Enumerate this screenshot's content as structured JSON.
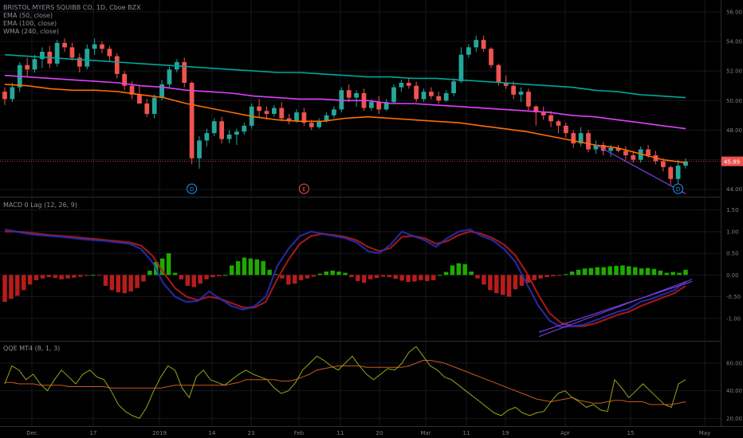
{
  "legend": {
    "symbol": "BRISTOL MYERS SQUIBB CO, 1D, Cboe BZX",
    "ema50": "EMA (50, close)",
    "ema100": "EMA (100, close)",
    "wma240": "WMA (240, close)",
    "macd": "MACD 0 Lag (12, 26, 9)",
    "qqe": "QQE MT4 (8, 1, 3)"
  },
  "colors": {
    "up": "#26a69a",
    "down": "#ef5350",
    "ema50": "#ff6d00",
    "ema100": "#e040fb",
    "wma240": "#00a69c",
    "macd_pos": "#1faa00",
    "macd_neg": "#b71c1c",
    "price_tag": "#ef5350",
    "trend": "#7b3fe4"
  },
  "chart_data": [
    {
      "type": "candlestick",
      "pane": "price",
      "title": "BRISTOL MYERS SQUIBB CO, 1D, Cboe BZX",
      "y_ticks": [
        "56.00",
        "54.00",
        "52.00",
        "50.00",
        "48.00",
        "46.00",
        "44.00"
      ],
      "ylim": [
        43.5,
        56.8
      ],
      "x_ticks": [
        "Dec",
        "17",
        "2019",
        "14",
        "23",
        "Feb",
        "11",
        "20",
        "Mar",
        "11",
        "19",
        "Apr",
        "15",
        "May"
      ],
      "last_price": "45.89",
      "ohlc": [
        [
          50.6,
          50.9,
          49.7,
          50.1
        ],
        [
          50.1,
          51.2,
          49.9,
          50.9
        ],
        [
          50.9,
          52.6,
          50.6,
          52.4
        ],
        [
          52.4,
          52.9,
          51.6,
          52.1
        ],
        [
          52.1,
          53.1,
          51.9,
          52.8
        ],
        [
          52.8,
          53.6,
          52.2,
          53.3
        ],
        [
          53.3,
          53.7,
          52.2,
          52.5
        ],
        [
          52.5,
          54.1,
          52.3,
          53.9
        ],
        [
          53.9,
          54.2,
          53.3,
          53.6
        ],
        [
          53.6,
          53.9,
          52.7,
          52.9
        ],
        [
          52.9,
          53.2,
          51.9,
          52.3
        ],
        [
          52.3,
          53.8,
          52.1,
          53.5
        ],
        [
          53.5,
          54.2,
          53.1,
          53.8
        ],
        [
          53.8,
          54.0,
          53.2,
          53.5
        ],
        [
          53.5,
          53.7,
          52.6,
          53.0
        ],
        [
          53.0,
          53.2,
          51.5,
          51.8
        ],
        [
          51.8,
          52.0,
          50.7,
          51.0
        ],
        [
          51.0,
          51.3,
          50.1,
          50.4
        ],
        [
          50.4,
          51.0,
          49.8,
          49.8
        ],
        [
          49.8,
          50.1,
          48.9,
          49.1
        ],
        [
          49.1,
          50.4,
          48.8,
          50.2
        ],
        [
          50.2,
          51.4,
          50.0,
          51.1
        ],
        [
          51.1,
          52.3,
          50.9,
          52.1
        ],
        [
          52.1,
          52.8,
          51.9,
          52.6
        ],
        [
          52.6,
          52.9,
          50.9,
          51.2
        ],
        [
          51.2,
          51.3,
          45.7,
          46.1
        ],
        [
          46.1,
          47.6,
          45.4,
          47.3
        ],
        [
          47.3,
          48.1,
          46.9,
          47.8
        ],
        [
          47.8,
          48.8,
          47.6,
          48.6
        ],
        [
          48.6,
          48.9,
          47.1,
          47.4
        ],
        [
          47.4,
          48.0,
          47.1,
          47.7
        ],
        [
          47.7,
          48.1,
          47.0,
          47.9
        ],
        [
          47.9,
          48.5,
          47.7,
          48.3
        ],
        [
          48.3,
          49.8,
          48.1,
          49.6
        ],
        [
          49.6,
          50.1,
          48.9,
          49.3
        ],
        [
          49.3,
          49.6,
          48.7,
          49.1
        ],
        [
          49.1,
          49.7,
          48.9,
          49.5
        ],
        [
          49.5,
          49.9,
          48.6,
          48.8
        ],
        [
          48.8,
          49.1,
          48.4,
          48.6
        ],
        [
          48.6,
          49.4,
          48.5,
          49.2
        ],
        [
          49.2,
          49.5,
          48.3,
          48.5
        ],
        [
          48.5,
          48.7,
          48.0,
          48.2
        ],
        [
          48.2,
          48.8,
          48.1,
          48.6
        ],
        [
          48.6,
          49.2,
          48.5,
          49.0
        ],
        [
          49.0,
          49.6,
          48.8,
          49.4
        ],
        [
          49.4,
          50.9,
          49.2,
          50.7
        ],
        [
          50.7,
          51.1,
          49.9,
          50.2
        ],
        [
          50.2,
          50.7,
          49.6,
          50.5
        ],
        [
          50.5,
          50.8,
          49.3,
          49.5
        ],
        [
          49.5,
          50.1,
          49.3,
          49.9
        ],
        [
          49.9,
          50.3,
          49.1,
          49.4
        ],
        [
          49.4,
          50.1,
          49.3,
          49.9
        ],
        [
          49.9,
          51.1,
          49.8,
          50.9
        ],
        [
          50.9,
          51.4,
          50.6,
          51.2
        ],
        [
          51.2,
          51.5,
          50.8,
          51.0
        ],
        [
          51.0,
          51.3,
          49.9,
          50.1
        ],
        [
          50.1,
          50.8,
          49.9,
          50.6
        ],
        [
          50.6,
          50.9,
          50.1,
          50.3
        ],
        [
          50.3,
          50.6,
          49.8,
          50.0
        ],
        [
          50.0,
          50.7,
          49.9,
          50.5
        ],
        [
          50.5,
          51.5,
          50.3,
          51.3
        ],
        [
          51.3,
          53.6,
          51.2,
          53.1
        ],
        [
          53.1,
          53.8,
          52.9,
          53.6
        ],
        [
          53.6,
          54.4,
          53.3,
          54.1
        ],
        [
          54.1,
          54.4,
          53.3,
          53.5
        ],
        [
          53.5,
          53.6,
          52.2,
          52.4
        ],
        [
          52.4,
          52.5,
          51.0,
          51.2
        ],
        [
          51.2,
          51.7,
          50.8,
          51.0
        ],
        [
          51.0,
          51.3,
          50.1,
          50.4
        ],
        [
          50.4,
          50.9,
          49.9,
          50.6
        ],
        [
          50.6,
          50.8,
          49.3,
          49.6
        ],
        [
          49.6,
          49.7,
          48.3,
          49.2
        ],
        [
          49.2,
          49.6,
          48.7,
          49.0
        ],
        [
          49.0,
          49.3,
          48.2,
          48.6
        ],
        [
          48.6,
          48.7,
          47.8,
          48.3
        ],
        [
          48.3,
          48.5,
          47.5,
          47.8
        ],
        [
          47.8,
          48.0,
          46.8,
          47.1
        ],
        [
          47.1,
          48.2,
          46.9,
          47.8
        ],
        [
          47.8,
          48.0,
          46.5,
          46.7
        ],
        [
          46.7,
          47.3,
          46.4,
          47.0
        ],
        [
          47.0,
          47.2,
          46.3,
          46.6
        ],
        [
          46.6,
          47.0,
          46.2,
          46.8
        ],
        [
          46.8,
          47.0,
          46.5,
          46.6
        ],
        [
          46.6,
          46.9,
          46.0,
          46.3
        ],
        [
          46.3,
          46.6,
          45.8,
          46.0
        ],
        [
          46.0,
          46.9,
          45.8,
          46.7
        ],
        [
          46.7,
          47.0,
          46.1,
          46.3
        ],
        [
          46.3,
          46.6,
          45.7,
          45.9
        ],
        [
          45.9,
          46.1,
          45.2,
          45.5
        ],
        [
          45.5,
          45.6,
          44.3,
          44.7
        ],
        [
          44.7,
          46.0,
          44.4,
          45.6
        ],
        [
          45.6,
          46.1,
          45.4,
          45.89
        ]
      ],
      "ema50": [
        51.1,
        51.0,
        50.8,
        50.7,
        50.7,
        50.6,
        50.4,
        50.2,
        49.8,
        49.5,
        49.2,
        48.9,
        48.7,
        48.6,
        48.6,
        48.8,
        48.9,
        48.8,
        48.7,
        48.6,
        48.5,
        48.3,
        48.1,
        47.9,
        47.6,
        47.3,
        47.0,
        46.8,
        46.4,
        46.0,
        45.8
      ],
      "ema100": [
        51.7,
        51.6,
        51.5,
        51.4,
        51.3,
        51.2,
        51.0,
        50.9,
        50.7,
        50.6,
        50.5,
        50.3,
        50.2,
        50.1,
        50.1,
        50.0,
        50.0,
        49.8,
        49.8,
        49.7,
        49.6,
        49.5,
        49.4,
        49.3,
        49.2,
        49.0,
        48.9,
        48.7,
        48.5,
        48.3,
        48.1
      ],
      "wma240": [
        53.1,
        53.0,
        52.9,
        52.8,
        52.7,
        52.6,
        52.5,
        52.4,
        52.3,
        52.2,
        52.1,
        52.0,
        51.9,
        51.9,
        51.8,
        51.7,
        51.6,
        51.6,
        51.5,
        51.5,
        51.4,
        51.3,
        51.2,
        51.1,
        51.0,
        50.9,
        50.7,
        50.6,
        50.4,
        50.3,
        50.2
      ],
      "markers": [
        {
          "label": "D",
          "index": 25,
          "kind": "dividend"
        },
        {
          "label": "E",
          "index": 40,
          "kind": "earnings"
        },
        {
          "label": "D",
          "index": 90,
          "kind": "dividend"
        },
        {
          "label": "E",
          "index": 105,
          "kind": "earnings"
        }
      ]
    },
    {
      "type": "bar",
      "pane": "macd",
      "title": "MACD 0 Lag (12, 26, 9)",
      "y_ticks": [
        "1.50",
        "1.00",
        "0.50",
        "0.00",
        "-0.50",
        "-1.00"
      ],
      "ylim": [
        -1.5,
        1.75
      ],
      "histogram": [
        -0.62,
        -0.55,
        -0.48,
        -0.35,
        -0.22,
        -0.12,
        -0.08,
        -0.05,
        -0.07,
        -0.1,
        -0.08,
        -0.06,
        -0.04,
        -0.02,
        0.0,
        -0.01,
        -0.25,
        -0.35,
        -0.4,
        -0.42,
        -0.38,
        -0.3,
        -0.15,
        0.1,
        0.3,
        0.38,
        0.5,
        0.05,
        -0.1,
        -0.25,
        -0.28,
        -0.2,
        -0.1,
        -0.05,
        -0.03,
        0.0,
        0.22,
        0.32,
        0.4,
        0.38,
        0.36,
        0.32,
        0.12,
        0.02,
        -0.08,
        -0.22,
        -0.2,
        -0.12,
        -0.08,
        -0.04,
        0.03,
        0.08,
        0.1,
        0.08,
        0.05,
        -0.05,
        -0.14,
        -0.18,
        -0.1,
        -0.07,
        -0.04,
        -0.05,
        -0.09,
        -0.13,
        -0.16,
        -0.15,
        -0.12,
        -0.14,
        -0.12,
        0.0,
        0.07,
        0.22,
        0.27,
        0.25,
        0.08,
        -0.08,
        -0.22,
        -0.35,
        -0.42,
        -0.46,
        -0.5,
        -0.33,
        -0.25,
        -0.18,
        -0.12,
        -0.08,
        -0.05,
        -0.03,
        -0.01,
        0.02,
        0.08,
        0.12,
        0.15,
        0.16,
        0.18,
        0.18,
        0.2,
        0.21,
        0.22,
        0.2,
        0.18,
        0.15,
        0.16,
        0.14,
        0.1,
        0.05,
        0.07,
        0.05,
        0.12
      ],
      "macd_line": [
        1.05,
        1.0,
        0.95,
        0.92,
        0.9,
        0.88,
        0.85,
        0.82,
        0.8,
        0.78,
        0.75,
        0.72,
        0.6,
        0.3,
        -0.2,
        -0.5,
        -0.62,
        -0.6,
        -0.38,
        -0.55,
        -0.72,
        -0.8,
        -0.72,
        -0.5,
        0.2,
        0.6,
        0.9,
        1.0,
        0.95,
        0.9,
        0.85,
        0.75,
        0.55,
        0.5,
        0.7,
        1.0,
        0.9,
        0.8,
        0.65,
        0.85,
        1.0,
        1.05,
        0.9,
        0.8,
        0.6,
        0.3,
        -0.2,
        -0.7,
        -1.05,
        -1.2,
        -1.18,
        -1.15,
        -1.05,
        -0.95,
        -0.85,
        -0.78,
        -0.62,
        -0.55,
        -0.45,
        -0.35,
        -0.15
      ],
      "signal_line": [
        1.0,
        1.0,
        0.98,
        0.95,
        0.92,
        0.9,
        0.88,
        0.85,
        0.83,
        0.8,
        0.78,
        0.75,
        0.68,
        0.45,
        0.05,
        -0.3,
        -0.5,
        -0.58,
        -0.5,
        -0.55,
        -0.65,
        -0.75,
        -0.75,
        -0.62,
        -0.1,
        0.35,
        0.72,
        0.9,
        0.95,
        0.92,
        0.88,
        0.8,
        0.65,
        0.55,
        0.62,
        0.88,
        0.9,
        0.85,
        0.72,
        0.78,
        0.92,
        1.0,
        0.95,
        0.85,
        0.7,
        0.45,
        0.05,
        -0.45,
        -0.88,
        -1.1,
        -1.18,
        -1.18,
        -1.12,
        -1.02,
        -0.92,
        -0.85,
        -0.72,
        -0.62,
        -0.52,
        -0.42,
        -0.25
      ]
    },
    {
      "type": "line",
      "pane": "qqe",
      "title": "QQE MT4 (8, 1, 3)",
      "y_ticks": [
        "60.00",
        "40.00",
        "20.00"
      ],
      "ylim": [
        15,
        75
      ],
      "rsi": [
        45,
        58,
        55,
        48,
        52,
        45,
        40,
        48,
        55,
        50,
        45,
        52,
        55,
        50,
        48,
        40,
        30,
        25,
        22,
        20,
        28,
        40,
        50,
        58,
        55,
        42,
        35,
        50,
        55,
        48,
        46,
        44,
        48,
        52,
        55,
        52,
        50,
        48,
        42,
        38,
        40,
        46,
        55,
        60,
        65,
        62,
        58,
        55,
        60,
        65,
        58,
        52,
        48,
        52,
        56,
        55,
        60,
        68,
        72,
        65,
        58,
        55,
        50,
        48,
        44,
        40,
        36,
        32,
        28,
        24,
        22,
        26,
        28,
        24,
        22,
        24,
        25,
        32,
        38,
        40,
        35,
        32,
        28,
        30,
        26,
        25,
        48,
        42,
        35,
        40,
        45,
        40,
        35,
        30,
        28,
        45,
        48
      ],
      "trailing": [
        46,
        46,
        45,
        45,
        45,
        44,
        44,
        44,
        44,
        43,
        43,
        43,
        43,
        43,
        43,
        42,
        42,
        42,
        42,
        42,
        42,
        42,
        42,
        43,
        44,
        44,
        44,
        44,
        44,
        44,
        44,
        44,
        45,
        46,
        48,
        48,
        48,
        48,
        48,
        47,
        47,
        48,
        50,
        52,
        55,
        56,
        57,
        58,
        58,
        58,
        58,
        57,
        57,
        57,
        57,
        57,
        57,
        58,
        60,
        62,
        62,
        61,
        60,
        58,
        56,
        54,
        52,
        50,
        48,
        46,
        44,
        42,
        40,
        38,
        36,
        34,
        33,
        32,
        33,
        34,
        35,
        33,
        32,
        31,
        31,
        32,
        33,
        33,
        32,
        32,
        32,
        30,
        30,
        30,
        30,
        31,
        32
      ]
    }
  ]
}
